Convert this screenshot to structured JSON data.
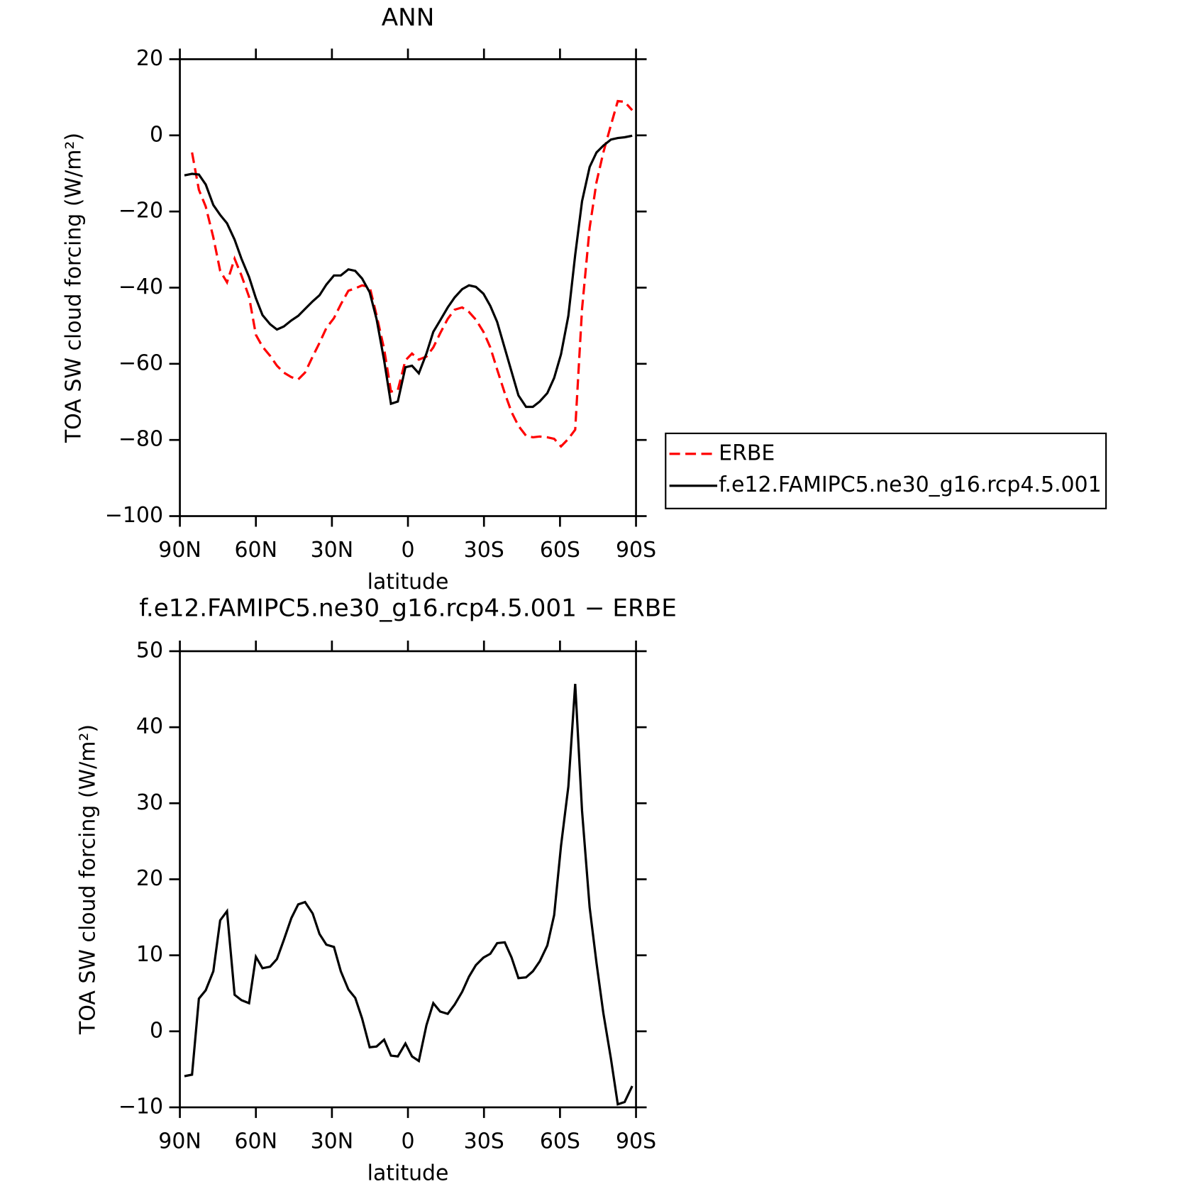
{
  "chart_data": [
    {
      "type": "line",
      "title": "ANN",
      "xlabel": "latitude",
      "ylabel": "TOA SW cloud forcing (W/m²)",
      "x": [
        88.2,
        85.2,
        82.5,
        79.8,
        76.8,
        74.1,
        71.4,
        68.4,
        65.7,
        62.7,
        60.0,
        57.4,
        54.4,
        51.7,
        49.0,
        46.0,
        43.3,
        40.6,
        37.6,
        34.9,
        32.2,
        29.2,
        26.5,
        23.5,
        20.8,
        18.1,
        15.1,
        12.4,
        9.4,
        6.7,
        4.0,
        1.0,
        -1.6,
        -4.3,
        -7.3,
        -10.0,
        -12.7,
        -15.7,
        -18.4,
        -21.4,
        -24.1,
        -26.8,
        -29.8,
        -32.5,
        -35.2,
        -38.2,
        -40.9,
        -43.6,
        -46.6,
        -49.3,
        -52.0,
        -55.0,
        -57.7,
        -60.4,
        -63.3,
        -66.0,
        -68.7,
        -71.7,
        -74.4,
        -77.1,
        -80.1,
        -82.8,
        -85.5,
        -88.5
      ],
      "series": [
        {
          "name": "ERBE",
          "color": "#ff0000",
          "style": "dashed",
          "values": [
            null,
            -4.5,
            -14.3,
            -18.7,
            -26.8,
            -35.6,
            -38.6,
            -32.4,
            -36.8,
            -42.4,
            -52.4,
            -55.5,
            -57.9,
            -60.5,
            -62.3,
            -63.5,
            -64.1,
            -62.3,
            -58.1,
            -54.5,
            -50.6,
            -48.0,
            -44.4,
            -40.8,
            -40.2,
            -39.4,
            -39.8,
            -47.2,
            -56.1,
            -67.3,
            -66.9,
            -59.1,
            -57.3,
            -58.9,
            -58.1,
            -55.7,
            -52.0,
            -48.2,
            -45.8,
            -45.2,
            -46.4,
            -48.4,
            -51.6,
            -55.7,
            -61.5,
            -67.7,
            -72.7,
            -76.3,
            -78.9,
            -79.3,
            -79.1,
            -79.3,
            -79.7,
            -81.7,
            -79.7,
            -77.3,
            -45.6,
            -24.3,
            -12.3,
            -4.5,
            2.7,
            9.0,
            8.8,
            6.6
          ]
        },
        {
          "name": "f.e12.FAMIPC5.ne30_g16.rcp4.5.001",
          "color": "#000000",
          "style": "solid",
          "values": [
            -10.5,
            -10.1,
            -10.3,
            -12.9,
            -18.3,
            -20.9,
            -23.1,
            -27.4,
            -32.4,
            -37.2,
            -42.8,
            -47.2,
            -49.6,
            -51.0,
            -50.2,
            -48.6,
            -47.4,
            -45.6,
            -43.6,
            -42.0,
            -39.2,
            -36.8,
            -36.8,
            -35.2,
            -35.6,
            -37.6,
            -41.2,
            -48.2,
            -59.1,
            -70.5,
            -69.9,
            -60.9,
            -60.5,
            -62.5,
            -57.3,
            -51.6,
            -48.6,
            -45.2,
            -42.6,
            -40.4,
            -39.4,
            -39.8,
            -41.6,
            -44.8,
            -49.0,
            -55.9,
            -62.1,
            -68.3,
            -71.3,
            -71.3,
            -69.9,
            -67.7,
            -63.7,
            -57.5,
            -47.4,
            -31.4,
            -17.3,
            -8.3,
            -4.5,
            -2.7,
            -1.1,
            -0.7,
            -0.5,
            -0.1
          ]
        }
      ],
      "xlim": [
        90,
        -90
      ],
      "xticks": [
        {
          "value": 90,
          "label": "90N"
        },
        {
          "value": 60,
          "label": "60N"
        },
        {
          "value": 30,
          "label": "30N"
        },
        0,
        {
          "value": -30,
          "label": "30S"
        },
        {
          "value": -60,
          "label": "60S"
        },
        {
          "value": -90,
          "label": "90S"
        }
      ],
      "ylim": [
        -100,
        20
      ],
      "yticks": [
        {
          "value": -100,
          "label": "−100"
        },
        {
          "value": -80,
          "label": "−80"
        },
        {
          "value": -60,
          "label": "−60"
        },
        {
          "value": -40,
          "label": "−40"
        },
        {
          "value": -20,
          "label": "−20"
        },
        0,
        20
      ],
      "legend": "right"
    },
    {
      "type": "line",
      "title": "f.e12.FAMIPC5.ne30_g16.rcp4.5.001 − ERBE",
      "xlabel": "latitude",
      "ylabel": "TOA SW cloud forcing (W/m²)",
      "x": [
        88.2,
        85.2,
        82.5,
        79.8,
        76.8,
        74.1,
        71.4,
        68.4,
        65.7,
        62.7,
        60.0,
        57.4,
        54.4,
        51.7,
        49.0,
        46.0,
        43.3,
        40.6,
        37.6,
        34.9,
        32.2,
        29.2,
        26.5,
        23.5,
        20.8,
        18.1,
        15.1,
        12.4,
        9.4,
        6.7,
        4.0,
        1.0,
        -1.6,
        -4.3,
        -7.3,
        -10.0,
        -12.7,
        -15.7,
        -18.4,
        -21.4,
        -24.1,
        -26.8,
        -29.8,
        -32.5,
        -35.2,
        -38.2,
        -40.9,
        -43.6,
        -46.6,
        -49.3,
        -52.0,
        -55.0,
        -57.7,
        -60.4,
        -63.3,
        -66.0,
        -68.7,
        -71.7,
        -74.4,
        -77.1,
        -80.1,
        -82.8,
        -85.5,
        -88.5
      ],
      "series": [
        {
          "color": "#000000",
          "style": "solid",
          "values": [
            -5.9,
            -5.7,
            4.3,
            5.4,
            7.9,
            14.6,
            15.8,
            4.8,
            4.1,
            3.7,
            9.8,
            8.3,
            8.5,
            9.5,
            12.0,
            14.9,
            16.7,
            17.0,
            15.5,
            12.8,
            11.4,
            11.1,
            7.9,
            5.5,
            4.4,
            1.7,
            -2.1,
            -2.0,
            -1.1,
            -3.2,
            -3.3,
            -1.6,
            -3.3,
            -3.9,
            0.8,
            3.7,
            2.6,
            2.3,
            3.5,
            5.2,
            7.2,
            8.7,
            9.7,
            10.2,
            11.6,
            11.7,
            9.7,
            7.0,
            7.1,
            7.9,
            9.2,
            11.3,
            15.3,
            24.4,
            32.2,
            45.7,
            29.0,
            16.3,
            9.0,
            2.4,
            -3.6,
            -9.6,
            -9.3,
            -7.2
          ]
        }
      ],
      "xlim": [
        90,
        -90
      ],
      "xticks": [
        {
          "value": 90,
          "label": "90N"
        },
        {
          "value": 60,
          "label": "60N"
        },
        {
          "value": 30,
          "label": "30N"
        },
        0,
        {
          "value": -30,
          "label": "30S"
        },
        {
          "value": -60,
          "label": "60S"
        },
        {
          "value": -90,
          "label": "90S"
        }
      ],
      "ylim": [
        -10,
        50
      ],
      "yticks": [
        {
          "value": -10,
          "label": "−10"
        },
        0,
        10,
        20,
        30,
        40,
        50
      ]
    }
  ]
}
